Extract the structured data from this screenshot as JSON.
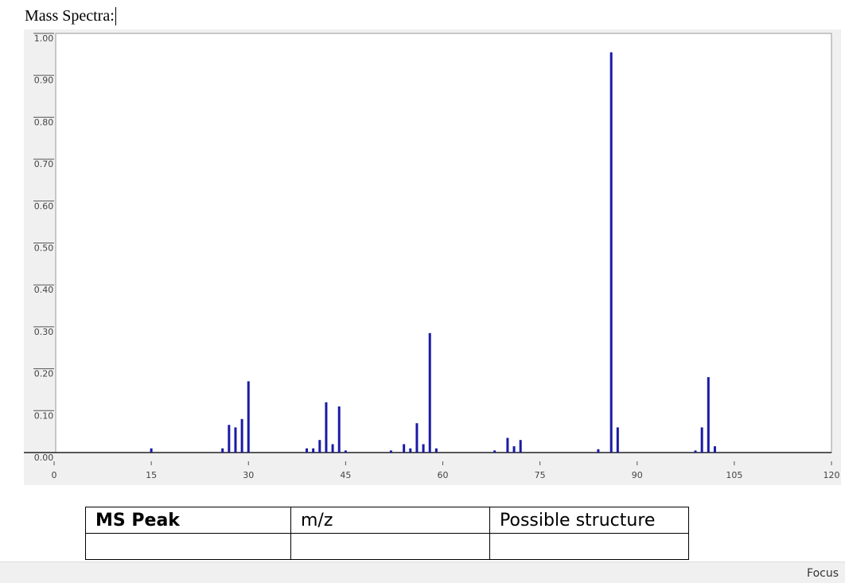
{
  "heading": "Mass Spectra:",
  "chart_data": {
    "type": "stem",
    "color": "#1a1aa6",
    "x": [
      15,
      26,
      27,
      28,
      29,
      30,
      39,
      40,
      41,
      42,
      43,
      44,
      45,
      52,
      54,
      55,
      56,
      57,
      58,
      59,
      68,
      70,
      71,
      72,
      84,
      86,
      87,
      99,
      100,
      101,
      102
    ],
    "values": [
      0.01,
      0.01,
      0.066,
      0.06,
      0.08,
      0.17,
      0.01,
      0.01,
      0.03,
      0.12,
      0.02,
      0.11,
      0.005,
      0.005,
      0.02,
      0.01,
      0.07,
      0.02,
      0.285,
      0.01,
      0.005,
      0.035,
      0.015,
      0.03,
      0.008,
      0.955,
      0.06,
      0.005,
      0.06,
      0.18,
      0.015
    ],
    "xlim": [
      0,
      120
    ],
    "xticks": [
      0,
      15,
      30,
      45,
      60,
      75,
      90,
      105,
      120
    ],
    "ylim": [
      0,
      1
    ],
    "yticks": [
      {
        "value": 0,
        "label": "0.00"
      },
      {
        "value": 0.1,
        "label": "0.10"
      },
      {
        "value": 0.2,
        "label": "0.20"
      },
      {
        "value": 0.3,
        "label": "0.30"
      },
      {
        "value": 0.4,
        "label": "0.40"
      },
      {
        "value": 0.5,
        "label": "0.50"
      },
      {
        "value": 0.6,
        "label": "0.60"
      },
      {
        "value": 0.7,
        "label": "0.70"
      },
      {
        "value": 0.8,
        "label": "0.80"
      },
      {
        "value": 0.9,
        "label": "0.90"
      },
      {
        "value": 1,
        "label": "1.00"
      }
    ]
  },
  "table": {
    "rows": [
      [
        "MS Peak",
        "m/z",
        "Possible structure"
      ],
      [
        "",
        "",
        ""
      ]
    ]
  },
  "status_bar": {
    "focus": "Focus"
  }
}
